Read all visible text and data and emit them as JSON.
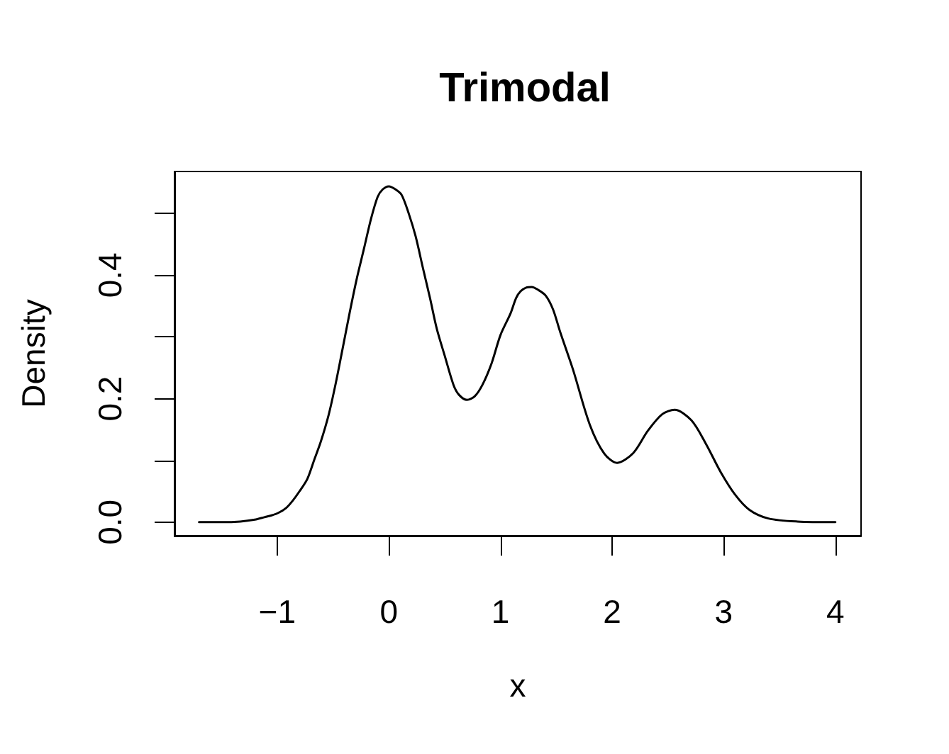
{
  "chart_data": {
    "type": "line",
    "title": "Trimodal",
    "xlabel": "x",
    "ylabel": "Density",
    "x": [
      -1.7,
      -1.5,
      -1.33,
      -1.2,
      -1.115,
      -1.05,
      -0.99,
      -0.92,
      -0.86,
      -0.8,
      -0.73,
      -0.67,
      -0.61,
      -0.54,
      -0.48,
      -0.415,
      -0.35,
      -0.29,
      -0.22,
      -0.16,
      -0.1,
      -0.055,
      0.0,
      0.06,
      0.115,
      0.18,
      0.24,
      0.305,
      0.37,
      0.43,
      0.5,
      0.58,
      0.63,
      0.7,
      0.77,
      0.84,
      0.92,
      1.0,
      1.09,
      1.14,
      1.18,
      1.23,
      1.28,
      1.34,
      1.405,
      1.47,
      1.535,
      1.65,
      1.8,
      1.93,
      2.045,
      2.19,
      2.32,
      2.45,
      2.56,
      2.71,
      2.84,
      2.97,
      3.1,
      3.23,
      3.4,
      3.66,
      4.0
    ],
    "values": [
      0.0,
      0.0,
      0.001,
      0.004,
      0.008,
      0.011,
      0.015,
      0.023,
      0.035,
      0.05,
      0.07,
      0.1,
      0.13,
      0.173,
      0.221,
      0.28,
      0.34,
      0.392,
      0.445,
      0.491,
      0.527,
      0.539,
      0.544,
      0.539,
      0.53,
      0.499,
      0.463,
      0.412,
      0.362,
      0.313,
      0.27,
      0.222,
      0.206,
      0.198,
      0.204,
      0.223,
      0.257,
      0.303,
      0.338,
      0.363,
      0.374,
      0.38,
      0.381,
      0.376,
      0.367,
      0.345,
      0.308,
      0.247,
      0.158,
      0.111,
      0.096,
      0.112,
      0.148,
      0.175,
      0.182,
      0.165,
      0.127,
      0.082,
      0.045,
      0.02,
      0.006,
      0.001,
      0.0
    ],
    "color": "#000000",
    "xlim": [
      -1.92,
      4.23
    ],
    "ylim": [
      -0.022,
      0.568
    ],
    "xticks": [
      {
        "value": -1,
        "label": "−1"
      },
      0,
      1,
      2,
      3,
      4
    ],
    "yticks": [
      {
        "value": 0,
        "label": "0.0"
      },
      {
        "value": 0.1,
        "label": null
      },
      {
        "value": 0.2,
        "label": "0.2"
      },
      {
        "value": 0.3,
        "label": null
      },
      {
        "value": 0.4,
        "label": "0.4"
      },
      {
        "value": 0.5,
        "label": null
      }
    ],
    "grid": false,
    "marker": "none",
    "line_style": "solid"
  }
}
